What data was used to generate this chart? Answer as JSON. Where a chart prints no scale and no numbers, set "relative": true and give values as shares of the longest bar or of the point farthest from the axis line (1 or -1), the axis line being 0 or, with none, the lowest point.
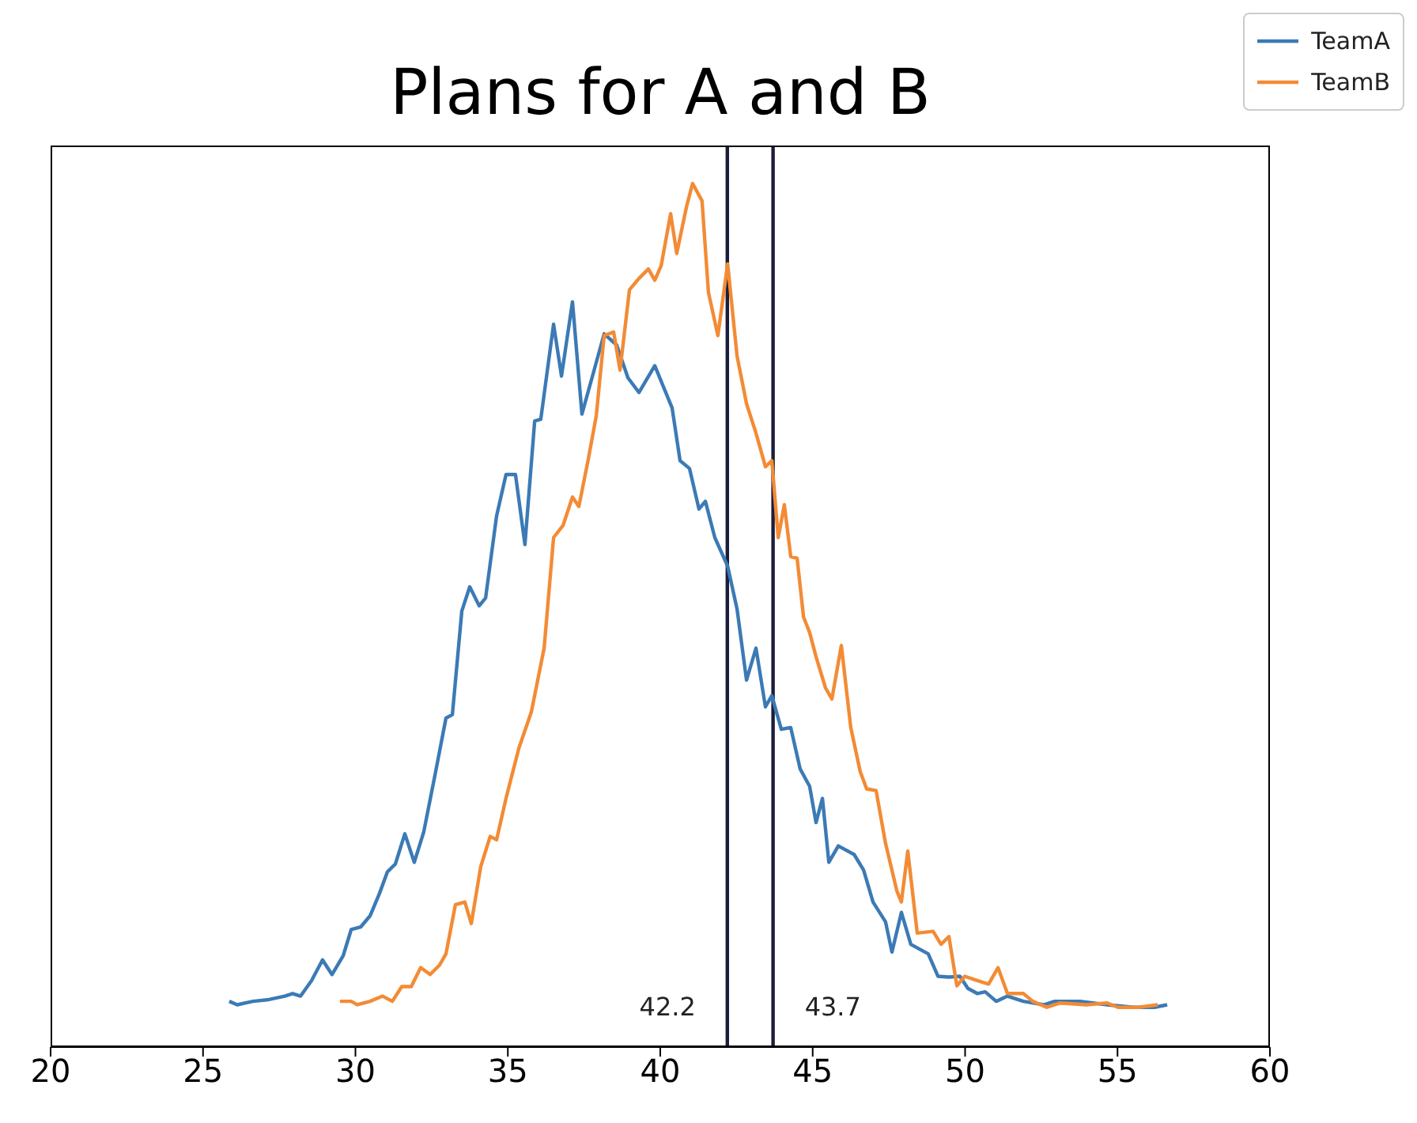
{
  "chart_data": {
    "type": "line",
    "title": "Plans for A and B",
    "relative": true,
    "xlim": [
      20,
      60
    ],
    "xticks": [
      20,
      25,
      30,
      35,
      40,
      45,
      50,
      55,
      60
    ],
    "legend": "top right",
    "series": [
      {
        "name": "TeamA",
        "color": "#3b7ab5",
        "x": [
          25.86,
          26.12,
          26.64,
          27.16,
          27.68,
          27.94,
          28.2,
          28.56,
          28.92,
          29.23,
          29.6,
          29.86,
          30.17,
          30.48,
          30.79,
          31.05,
          31.31,
          31.62,
          31.93,
          32.24,
          32.61,
          32.97,
          33.18,
          33.49,
          33.75,
          34.06,
          34.27,
          34.63,
          34.94,
          35.25,
          35.56,
          35.88,
          36.08,
          36.5,
          36.76,
          37.12,
          37.43,
          37.8,
          38.16,
          38.57,
          38.94,
          39.3,
          39.82,
          40.39,
          40.65,
          40.96,
          41.27,
          41.48,
          41.79,
          42.21,
          42.52,
          42.83,
          43.14,
          43.45,
          43.66,
          43.97,
          44.28,
          44.59,
          44.9,
          45.11,
          45.32,
          45.53,
          45.84,
          46.36,
          46.67,
          46.98,
          47.39,
          47.6,
          47.91,
          48.22,
          48.79,
          49.11,
          49.47,
          49.83,
          50.09,
          50.4,
          50.66,
          51.02,
          51.39,
          51.91,
          52.58,
          52.94,
          53.77,
          54.66,
          55.54,
          56.21,
          56.63
        ],
        "values": [
          0.053,
          0.049,
          0.053,
          0.055,
          0.059,
          0.062,
          0.059,
          0.077,
          0.101,
          0.084,
          0.106,
          0.136,
          0.139,
          0.152,
          0.178,
          0.203,
          0.212,
          0.247,
          0.214,
          0.249,
          0.315,
          0.381,
          0.385,
          0.505,
          0.533,
          0.511,
          0.52,
          0.615,
          0.663,
          0.663,
          0.582,
          0.725,
          0.727,
          0.837,
          0.777,
          0.863,
          0.733,
          0.78,
          0.826,
          0.813,
          0.775,
          0.758,
          0.789,
          0.74,
          0.679,
          0.67,
          0.623,
          0.632,
          0.59,
          0.557,
          0.507,
          0.425,
          0.462,
          0.394,
          0.407,
          0.368,
          0.37,
          0.322,
          0.302,
          0.26,
          0.288,
          0.214,
          0.233,
          0.223,
          0.205,
          0.168,
          0.145,
          0.11,
          0.156,
          0.119,
          0.108,
          0.082,
          0.081,
          0.082,
          0.068,
          0.062,
          0.064,
          0.053,
          0.059,
          0.053,
          0.049,
          0.053,
          0.053,
          0.049,
          0.046,
          0.046,
          0.049
        ]
      },
      {
        "name": "TeamB",
        "color": "#f38b35",
        "x": [
          29.49,
          29.86,
          30.06,
          30.48,
          30.89,
          31.21,
          31.52,
          31.83,
          32.14,
          32.45,
          32.76,
          32.97,
          33.28,
          33.59,
          33.8,
          34.11,
          34.42,
          34.63,
          34.94,
          35.36,
          35.77,
          36.19,
          36.5,
          36.81,
          37.12,
          37.33,
          37.64,
          37.9,
          38.16,
          38.47,
          38.68,
          38.99,
          39.3,
          39.61,
          39.82,
          40.03,
          40.34,
          40.54,
          40.86,
          41.06,
          41.37,
          41.58,
          41.89,
          42.21,
          42.52,
          42.83,
          43.14,
          43.45,
          43.66,
          43.87,
          44.07,
          44.28,
          44.49,
          44.7,
          44.9,
          45.11,
          45.42,
          45.63,
          45.94,
          46.25,
          46.56,
          46.77,
          47.08,
          47.39,
          47.76,
          47.91,
          48.12,
          48.43,
          48.95,
          49.21,
          49.47,
          49.73,
          49.99,
          50.4,
          50.77,
          51.08,
          51.39,
          51.91,
          52.22,
          52.68,
          53.1,
          53.98,
          54.66,
          55.02,
          55.69,
          56.32
        ],
        "values": [
          0.053,
          0.053,
          0.049,
          0.053,
          0.059,
          0.053,
          0.07,
          0.07,
          0.092,
          0.084,
          0.095,
          0.108,
          0.165,
          0.168,
          0.143,
          0.209,
          0.244,
          0.24,
          0.288,
          0.346,
          0.388,
          0.462,
          0.59,
          0.604,
          0.637,
          0.626,
          0.681,
          0.731,
          0.824,
          0.828,
          0.784,
          0.877,
          0.89,
          0.901,
          0.888,
          0.905,
          0.965,
          0.919,
          0.973,
          1,
          0.98,
          0.874,
          0.824,
          0.907,
          0.8,
          0.745,
          0.711,
          0.672,
          0.679,
          0.59,
          0.628,
          0.568,
          0.566,
          0.498,
          0.48,
          0.452,
          0.416,
          0.403,
          0.465,
          0.37,
          0.319,
          0.299,
          0.297,
          0.236,
          0.181,
          0.168,
          0.227,
          0.132,
          0.134,
          0.119,
          0.128,
          0.071,
          0.082,
          0.077,
          0.073,
          0.092,
          0.062,
          0.062,
          0.053,
          0.046,
          0.051,
          0.049,
          0.051,
          0.046,
          0.046,
          0.049
        ]
      }
    ],
    "ref_lines": [
      {
        "axis": "x",
        "value": 42.2,
        "label": "42.2",
        "color": "#1c1c3c"
      },
      {
        "axis": "x",
        "value": 43.7,
        "label": "43.7",
        "color": "#1c1c3c"
      }
    ]
  }
}
